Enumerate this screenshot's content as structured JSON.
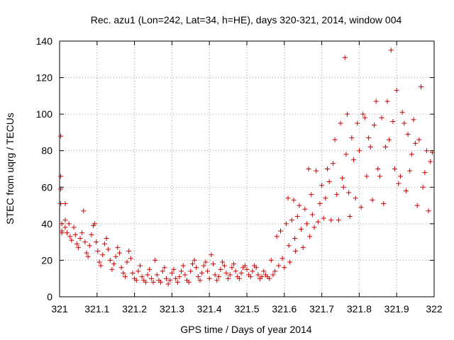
{
  "chart_data": {
    "type": "scatter",
    "title": "Rec. azu1 (Lon=242, Lat=34, h=HE), days 320-321, 2014, window 004",
    "xlabel": "GPS time / Days of year 2014",
    "ylabel": "STEC from uqrg / TECUs",
    "xlim": [
      321,
      322
    ],
    "ylim": [
      0,
      140
    ],
    "x_ticks": [
      321,
      321.1,
      321.2,
      321.3,
      321.4,
      321.5,
      321.6,
      321.7,
      321.8,
      321.9,
      322
    ],
    "x_tick_labels": [
      "321",
      "321.1",
      "321.2",
      "321.3",
      "321.4",
      "321.5",
      "321.6",
      "321.7",
      "321.8",
      "321.9",
      "322"
    ],
    "y_ticks": [
      0,
      20,
      40,
      60,
      80,
      100,
      120,
      140
    ],
    "y_tick_labels": [
      "0",
      "20",
      "40",
      "60",
      "80",
      "100",
      "120",
      "140"
    ],
    "grid": "dotted",
    "marker": "plus",
    "marker_color": "#cc0000",
    "series": [
      {
        "points": [
          [
            321.003,
            88
          ],
          [
            321.003,
            66
          ],
          [
            321.003,
            59
          ],
          [
            321.003,
            51
          ],
          [
            321.006,
            40
          ],
          [
            321.006,
            36
          ],
          [
            321.006,
            35
          ],
          [
            321.015,
            51
          ],
          [
            321.015,
            42
          ],
          [
            321.015,
            38
          ],
          [
            321.02,
            35
          ],
          [
            321.025,
            40
          ],
          [
            321.028,
            33
          ],
          [
            321.032,
            31
          ],
          [
            321.038,
            38
          ],
          [
            321.042,
            34
          ],
          [
            321.046,
            29
          ],
          [
            321.05,
            27
          ],
          [
            321.055,
            32
          ],
          [
            321.06,
            35
          ],
          [
            321.064,
            47
          ],
          [
            321.068,
            30
          ],
          [
            321.072,
            24
          ],
          [
            321.076,
            22
          ],
          [
            321.08,
            28
          ],
          [
            321.085,
            34
          ],
          [
            321.09,
            39
          ],
          [
            321.094,
            40
          ],
          [
            321.098,
            30
          ],
          [
            321.102,
            25
          ],
          [
            321.106,
            19
          ],
          [
            321.11,
            17
          ],
          [
            321.115,
            23
          ],
          [
            321.12,
            29
          ],
          [
            321.125,
            32
          ],
          [
            321.13,
            26
          ],
          [
            321.135,
            20
          ],
          [
            321.14,
            15
          ],
          [
            321.145,
            18
          ],
          [
            321.15,
            22
          ],
          [
            321.155,
            27
          ],
          [
            321.16,
            24
          ],
          [
            321.165,
            16
          ],
          [
            321.17,
            13
          ],
          [
            321.175,
            11
          ],
          [
            321.18,
            19
          ],
          [
            321.185,
            25
          ],
          [
            321.19,
            21
          ],
          [
            321.195,
            13
          ],
          [
            321.2,
            10
          ],
          [
            321.205,
            9
          ],
          [
            321.21,
            14
          ],
          [
            321.215,
            17
          ],
          [
            321.22,
            11
          ],
          [
            321.225,
            9
          ],
          [
            321.23,
            8
          ],
          [
            321.235,
            12
          ],
          [
            321.24,
            15
          ],
          [
            321.245,
            10
          ],
          [
            321.25,
            8
          ],
          [
            321.255,
            20
          ],
          [
            321.26,
            12
          ],
          [
            321.265,
            9
          ],
          [
            321.27,
            8
          ],
          [
            321.275,
            14
          ],
          [
            321.28,
            16
          ],
          [
            321.285,
            10
          ],
          [
            321.29,
            7
          ],
          [
            321.295,
            9
          ],
          [
            321.3,
            13
          ],
          [
            321.305,
            15
          ],
          [
            321.31,
            10
          ],
          [
            321.315,
            8
          ],
          [
            321.32,
            11
          ],
          [
            321.325,
            14
          ],
          [
            321.33,
            17
          ],
          [
            321.335,
            12
          ],
          [
            321.34,
            9
          ],
          [
            321.345,
            8
          ],
          [
            321.35,
            14
          ],
          [
            321.355,
            18
          ],
          [
            321.36,
            20
          ],
          [
            321.365,
            16
          ],
          [
            321.37,
            11
          ],
          [
            321.375,
            9
          ],
          [
            321.38,
            13
          ],
          [
            321.385,
            17
          ],
          [
            321.39,
            19
          ],
          [
            321.395,
            14
          ],
          [
            321.4,
            10
          ],
          [
            321.405,
            23
          ],
          [
            321.41,
            18
          ],
          [
            321.415,
            12
          ],
          [
            321.42,
            9
          ],
          [
            321.425,
            11
          ],
          [
            321.43,
            15
          ],
          [
            321.435,
            19
          ],
          [
            321.44,
            17
          ],
          [
            321.445,
            13
          ],
          [
            321.45,
            10
          ],
          [
            321.455,
            12
          ],
          [
            321.46,
            16
          ],
          [
            321.465,
            18
          ],
          [
            321.47,
            14
          ],
          [
            321.475,
            11
          ],
          [
            321.48,
            10
          ],
          [
            321.485,
            13
          ],
          [
            321.49,
            16
          ],
          [
            321.495,
            17
          ],
          [
            321.5,
            15
          ],
          [
            321.505,
            12
          ],
          [
            321.51,
            11
          ],
          [
            321.515,
            14
          ],
          [
            321.52,
            17
          ],
          [
            321.525,
            16
          ],
          [
            321.53,
            12
          ],
          [
            321.535,
            10
          ],
          [
            321.54,
            11
          ],
          [
            321.545,
            14
          ],
          [
            321.55,
            12
          ],
          [
            321.555,
            11
          ],
          [
            321.56,
            10
          ],
          [
            321.565,
            20
          ],
          [
            321.57,
            12
          ],
          [
            321.575,
            14
          ],
          [
            321.58,
            33
          ],
          [
            321.585,
            17
          ],
          [
            321.59,
            36
          ],
          [
            321.595,
            21
          ],
          [
            321.6,
            16
          ],
          [
            321.605,
            40
          ],
          [
            321.61,
            54
          ],
          [
            321.612,
            28
          ],
          [
            321.615,
            19
          ],
          [
            321.62,
            42
          ],
          [
            321.625,
            53
          ],
          [
            321.628,
            32
          ],
          [
            321.63,
            25
          ],
          [
            321.635,
            44
          ],
          [
            321.64,
            50
          ],
          [
            321.645,
            37
          ],
          [
            321.65,
            27
          ],
          [
            321.655,
            48
          ],
          [
            321.66,
            40
          ],
          [
            321.665,
            70
          ],
          [
            321.668,
            33
          ],
          [
            321.672,
            56
          ],
          [
            321.675,
            45
          ],
          [
            321.68,
            38
          ],
          [
            321.685,
            69
          ],
          [
            321.69,
            41
          ],
          [
            321.695,
            51
          ],
          [
            321.7,
            61
          ],
          [
            321.705,
            43
          ],
          [
            321.71,
            54
          ],
          [
            321.715,
            70
          ],
          [
            321.72,
            63
          ],
          [
            321.725,
            42
          ],
          [
            321.73,
            73
          ],
          [
            321.735,
            86
          ],
          [
            321.74,
            56
          ],
          [
            321.745,
            42
          ],
          [
            321.75,
            95
          ],
          [
            321.755,
            65
          ],
          [
            321.758,
            60
          ],
          [
            321.762,
            131
          ],
          [
            321.765,
            78
          ],
          [
            321.768,
            100
          ],
          [
            321.772,
            57
          ],
          [
            321.775,
            44
          ],
          [
            321.78,
            87
          ],
          [
            321.785,
            75
          ],
          [
            321.79,
            54
          ],
          [
            321.795,
            95
          ],
          [
            321.8,
            80
          ],
          [
            321.805,
            49
          ],
          [
            321.81,
            100
          ],
          [
            321.815,
            98
          ],
          [
            321.82,
            66
          ],
          [
            321.825,
            87
          ],
          [
            321.83,
            82
          ],
          [
            321.835,
            53
          ],
          [
            321.84,
            94
          ],
          [
            321.845,
            107
          ],
          [
            321.85,
            70
          ],
          [
            321.855,
            66
          ],
          [
            321.86,
            98
          ],
          [
            321.865,
            51
          ],
          [
            321.87,
            82
          ],
          [
            321.875,
            107
          ],
          [
            321.88,
            86
          ],
          [
            321.885,
            135
          ],
          [
            321.89,
            96
          ],
          [
            321.895,
            70
          ],
          [
            321.9,
            113
          ],
          [
            321.905,
            62
          ],
          [
            321.91,
            66
          ],
          [
            321.915,
            101
          ],
          [
            321.92,
            95
          ],
          [
            321.925,
            58
          ],
          [
            321.93,
            89
          ],
          [
            321.935,
            69
          ],
          [
            321.94,
            78
          ],
          [
            321.945,
            97
          ],
          [
            321.95,
            84
          ],
          [
            321.955,
            50
          ],
          [
            321.96,
            86
          ],
          [
            321.965,
            115
          ],
          [
            321.97,
            60
          ],
          [
            321.975,
            68
          ],
          [
            321.98,
            80
          ],
          [
            321.985,
            47
          ],
          [
            321.99,
            74
          ],
          [
            321.995,
            79
          ]
        ]
      }
    ]
  }
}
